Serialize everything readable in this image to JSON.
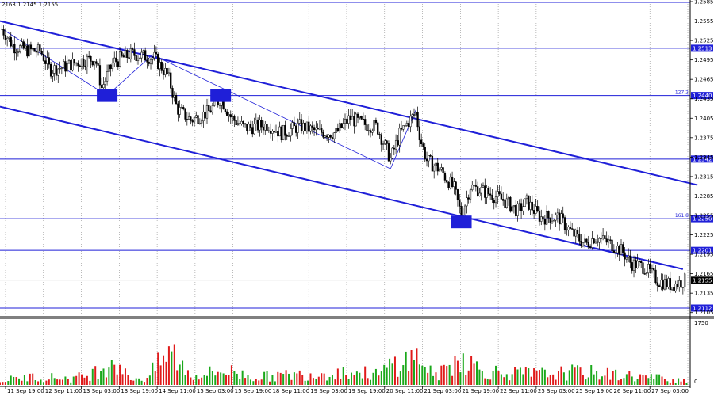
{
  "header": {
    "ohlc_text": "2163 1.2145 1.2155"
  },
  "chart_data": {
    "type": "candlestick",
    "price_axis": {
      "min": 1.2101,
      "max": 1.2585,
      "ticks": [
        "1.2585",
        "1.2555",
        "1.2525",
        "1.2495",
        "1.2465",
        "1.2435",
        "1.2405",
        "1.2375",
        "1.2345",
        "1.2315",
        "1.2285",
        "1.2255",
        "1.2225",
        "1.2195",
        "1.2165",
        "1.2135",
        "1.2105"
      ]
    },
    "volume_axis": {
      "min": 0,
      "max": 1750,
      "ticks": [
        "1750",
        "0"
      ]
    },
    "time_axis": {
      "labels": [
        "11 Sep 19:00",
        "12 Sep 11:00",
        "13 Sep 03:00",
        "13 Sep 19:00",
        "14 Sep 11:00",
        "15 Sep 03:00",
        "15 Sep 19:00",
        "18 Sep 11:00",
        "19 Sep 03:00",
        "19 Sep 19:00",
        "20 Sep 11:00",
        "21 Sep 03:00",
        "21 Sep 19:00",
        "22 Sep 11:00",
        "25 Sep 03:00",
        "25 Sep 19:00",
        "26 Sep 11:00",
        "27 Sep 03:00"
      ]
    },
    "current_price": "1.2155",
    "horizontal_levels": [
      {
        "price": 1.2513,
        "label": "1.2513",
        "fib": ""
      },
      {
        "price": 1.244,
        "label": "1.2440",
        "fib": "127.2"
      },
      {
        "price": 1.2342,
        "label": "1.2342",
        "fib": ""
      },
      {
        "price": 1.225,
        "label": "1.2250",
        "fib": "161.8"
      },
      {
        "price": 1.2201,
        "label": "1.2201",
        "fib": ""
      },
      {
        "price": 1.2112,
        "label": "1.2112",
        "fib": ""
      }
    ],
    "channel_lines": [
      {
        "name": "upper",
        "from": [
          0,
          1.2555
        ],
        "to": [
          768,
          1.2302
        ]
      },
      {
        "name": "lower",
        "from": [
          0,
          1.2423
        ],
        "to": [
          752,
          1.2172
        ]
      }
    ],
    "fib_path": [
      [
        2,
        1.2543
      ],
      [
        118,
        1.244
      ],
      [
        168,
        1.2503
      ],
      [
        430,
        1.2327
      ],
      [
        458,
        1.2418
      ]
    ],
    "marker_boxes": [
      {
        "bar": 118,
        "price": 1.244
      },
      {
        "bar": 243,
        "price": 1.244
      },
      {
        "bar": 508,
        "price": 1.2245
      }
    ],
    "price_waypoints": [
      [
        2,
        1.2543
      ],
      [
        15,
        1.2516
      ],
      [
        30,
        1.251
      ],
      [
        45,
        1.2508
      ],
      [
        55,
        1.248
      ],
      [
        70,
        1.2484
      ],
      [
        90,
        1.2494
      ],
      [
        105,
        1.2497
      ],
      [
        112,
        1.2452
      ],
      [
        125,
        1.2492
      ],
      [
        145,
        1.2504
      ],
      [
        170,
        1.2498
      ],
      [
        185,
        1.247
      ],
      [
        195,
        1.242
      ],
      [
        210,
        1.2402
      ],
      [
        230,
        1.2415
      ],
      [
        243,
        1.2436
      ],
      [
        255,
        1.2405
      ],
      [
        270,
        1.239
      ],
      [
        295,
        1.2395
      ],
      [
        310,
        1.2382
      ],
      [
        330,
        1.2393
      ],
      [
        350,
        1.2384
      ],
      [
        370,
        1.2382
      ],
      [
        385,
        1.2405
      ],
      [
        400,
        1.2396
      ],
      [
        415,
        1.2392
      ],
      [
        430,
        1.2342
      ],
      [
        440,
        1.238
      ],
      [
        450,
        1.24
      ],
      [
        458,
        1.2413
      ],
      [
        463,
        1.2372
      ],
      [
        470,
        1.234
      ],
      [
        485,
        1.2325
      ],
      [
        500,
        1.2296
      ],
      [
        508,
        1.2255
      ],
      [
        518,
        1.23
      ],
      [
        540,
        1.2288
      ],
      [
        555,
        1.2278
      ],
      [
        570,
        1.2262
      ],
      [
        580,
        1.2276
      ],
      [
        595,
        1.2252
      ],
      [
        615,
        1.2252
      ],
      [
        630,
        1.2228
      ],
      [
        645,
        1.221
      ],
      [
        655,
        1.2222
      ],
      [
        670,
        1.2213
      ],
      [
        685,
        1.22
      ],
      [
        695,
        1.2181
      ],
      [
        710,
        1.2175
      ],
      [
        725,
        1.2154
      ],
      [
        740,
        1.2147
      ],
      [
        755,
        1.2155
      ]
    ],
    "volume_waypoints": [
      [
        0,
        180
      ],
      [
        40,
        320
      ],
      [
        80,
        250
      ],
      [
        100,
        400
      ],
      [
        127,
        1050
      ],
      [
        140,
        300
      ],
      [
        160,
        220
      ],
      [
        188,
        1300
      ],
      [
        210,
        350
      ],
      [
        250,
        550
      ],
      [
        280,
        300
      ],
      [
        330,
        400
      ],
      [
        380,
        500
      ],
      [
        420,
        400
      ],
      [
        430,
        800
      ],
      [
        462,
        1050
      ],
      [
        480,
        300
      ],
      [
        508,
        1100
      ],
      [
        530,
        550
      ],
      [
        560,
        450
      ],
      [
        600,
        420
      ],
      [
        640,
        500
      ],
      [
        680,
        380
      ],
      [
        720,
        280
      ],
      [
        755,
        180
      ]
    ]
  }
}
